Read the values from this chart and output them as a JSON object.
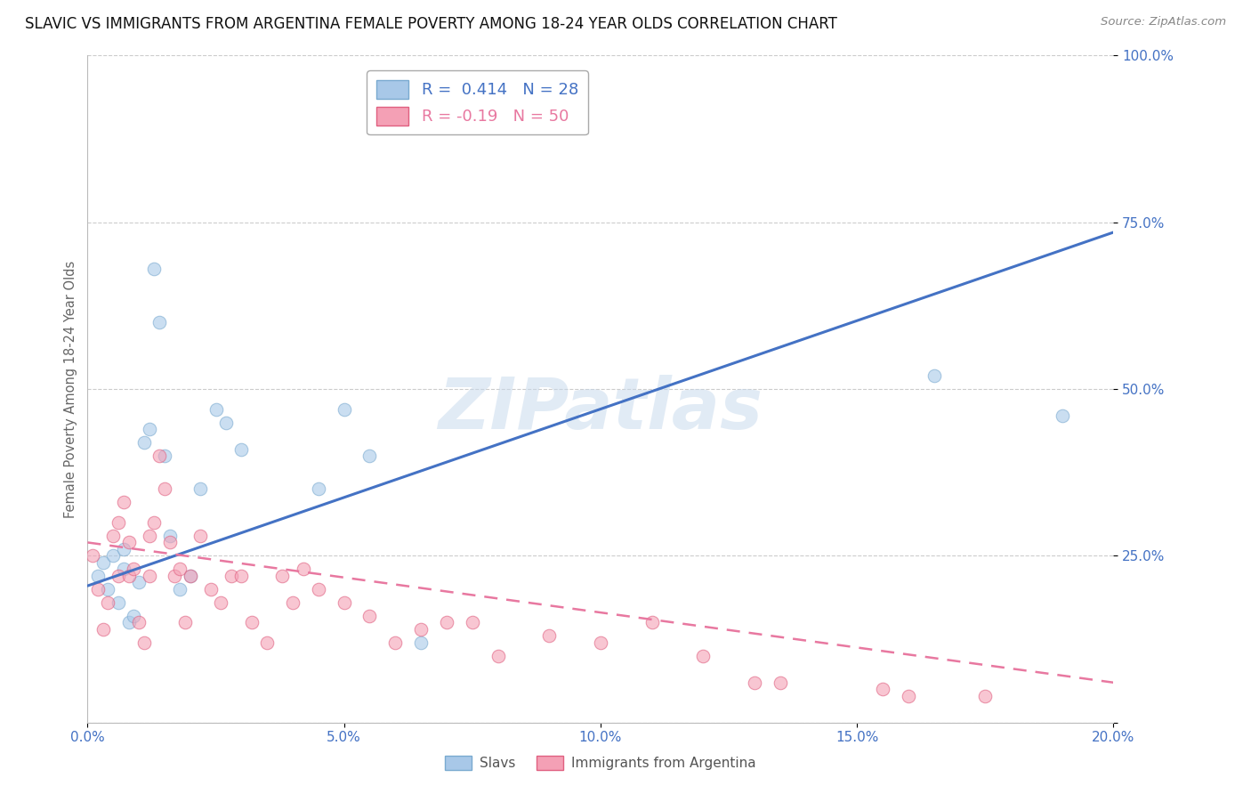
{
  "title": "SLAVIC VS IMMIGRANTS FROM ARGENTINA FEMALE POVERTY AMONG 18-24 YEAR OLDS CORRELATION CHART",
  "source": "Source: ZipAtlas.com",
  "ylabel": "Female Poverty Among 18-24 Year Olds",
  "xlim": [
    0.0,
    0.2
  ],
  "ylim": [
    0.0,
    1.0
  ],
  "xticks": [
    0.0,
    0.05,
    0.1,
    0.15,
    0.2
  ],
  "yticks": [
    0.0,
    0.25,
    0.5,
    0.75,
    1.0
  ],
  "xtick_labels": [
    "0.0%",
    "5.0%",
    "10.0%",
    "15.0%",
    "20.0%"
  ],
  "ytick_labels": [
    "",
    "25.0%",
    "50.0%",
    "75.0%",
    "100.0%"
  ],
  "grid_color": "#cccccc",
  "watermark": "ZIPatlas",
  "slavs_color": "#a8c8e8",
  "slavs_edge_color": "#7aaad0",
  "argentina_color": "#f4a0b5",
  "argentina_edge_color": "#e06080",
  "slavs_R": 0.414,
  "slavs_N": 28,
  "argentina_R": -0.19,
  "argentina_N": 50,
  "slavs_line_color": "#4472c4",
  "argentina_line_color": "#e878a0",
  "slavs_x": [
    0.002,
    0.003,
    0.004,
    0.005,
    0.006,
    0.007,
    0.007,
    0.008,
    0.009,
    0.01,
    0.011,
    0.012,
    0.013,
    0.014,
    0.015,
    0.016,
    0.018,
    0.02,
    0.022,
    0.025,
    0.027,
    0.03,
    0.045,
    0.05,
    0.055,
    0.065,
    0.165,
    0.19
  ],
  "slavs_y": [
    0.22,
    0.24,
    0.2,
    0.25,
    0.18,
    0.23,
    0.26,
    0.15,
    0.16,
    0.21,
    0.42,
    0.44,
    0.68,
    0.6,
    0.4,
    0.28,
    0.2,
    0.22,
    0.35,
    0.47,
    0.45,
    0.41,
    0.35,
    0.47,
    0.4,
    0.12,
    0.52,
    0.46
  ],
  "argentina_x": [
    0.001,
    0.002,
    0.003,
    0.004,
    0.005,
    0.006,
    0.006,
    0.007,
    0.008,
    0.008,
    0.009,
    0.01,
    0.011,
    0.012,
    0.012,
    0.013,
    0.014,
    0.015,
    0.016,
    0.017,
    0.018,
    0.019,
    0.02,
    0.022,
    0.024,
    0.026,
    0.028,
    0.03,
    0.032,
    0.035,
    0.038,
    0.04,
    0.042,
    0.045,
    0.05,
    0.055,
    0.06,
    0.065,
    0.07,
    0.075,
    0.08,
    0.09,
    0.1,
    0.11,
    0.12,
    0.13,
    0.135,
    0.155,
    0.16,
    0.175
  ],
  "argentina_y": [
    0.25,
    0.2,
    0.14,
    0.18,
    0.28,
    0.3,
    0.22,
    0.33,
    0.27,
    0.22,
    0.23,
    0.15,
    0.12,
    0.28,
    0.22,
    0.3,
    0.4,
    0.35,
    0.27,
    0.22,
    0.23,
    0.15,
    0.22,
    0.28,
    0.2,
    0.18,
    0.22,
    0.22,
    0.15,
    0.12,
    0.22,
    0.18,
    0.23,
    0.2,
    0.18,
    0.16,
    0.12,
    0.14,
    0.15,
    0.15,
    0.1,
    0.13,
    0.12,
    0.15,
    0.1,
    0.06,
    0.06,
    0.05,
    0.04,
    0.04
  ],
  "slavs_trend_x": [
    0.0,
    0.2
  ],
  "slavs_trend_y": [
    0.205,
    0.735
  ],
  "argentina_trend_x": [
    0.0,
    0.2
  ],
  "argentina_trend_y": [
    0.27,
    0.06
  ],
  "marker_size": 110,
  "marker_alpha": 0.6,
  "background_color": "#ffffff",
  "title_fontsize": 12,
  "tick_color": "#4472c4",
  "axis_color": "#bbbbbb",
  "legend_slavs_label": "Slavs",
  "legend_arg_label": "Immigrants from Argentina"
}
